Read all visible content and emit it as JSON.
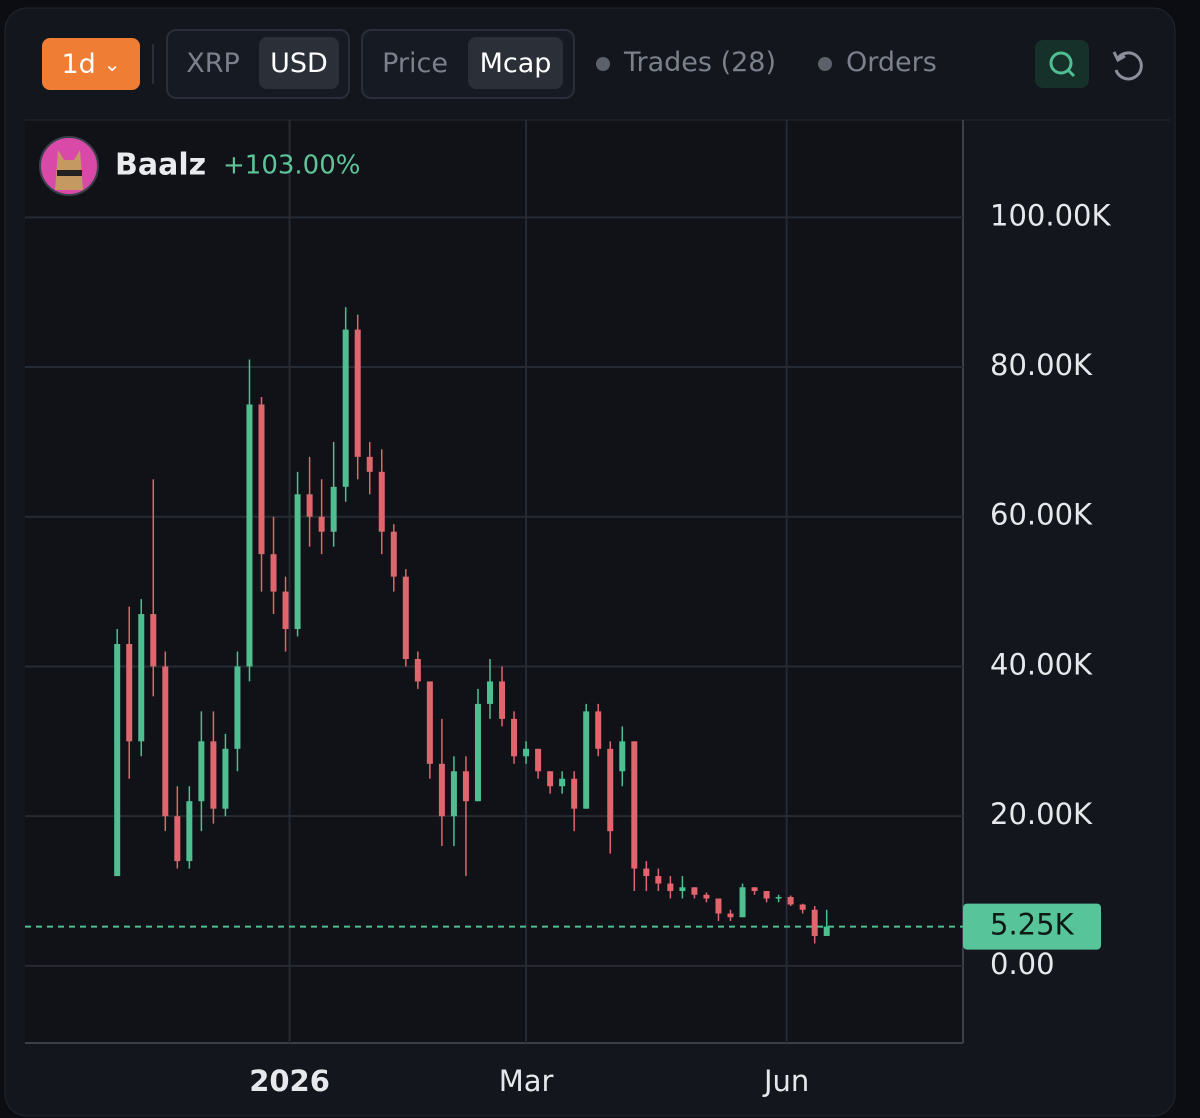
{
  "toolbar": {
    "interval": "1d",
    "currencies": [
      "XRP",
      "USD"
    ],
    "modes": [
      "Price",
      "Mcap"
    ],
    "toggles": [
      "Trades (28)",
      "Orders"
    ]
  },
  "chart_data": {
    "type": "candlestick",
    "title": "Baalz",
    "change": "+103.00%",
    "x": [
      -43,
      -40,
      -37,
      -34,
      -31,
      -28,
      -25,
      -22,
      -19,
      -16,
      -13,
      -10,
      -7,
      -4,
      -1,
      2,
      5,
      8,
      11,
      14,
      17,
      20,
      23,
      26,
      29,
      32,
      35,
      38,
      41,
      44,
      47,
      50,
      53,
      56,
      59,
      62,
      65,
      68,
      71,
      74,
      77,
      80,
      83,
      86,
      89,
      92,
      95,
      98,
      101,
      104,
      107,
      110,
      113,
      116,
      119,
      122,
      125,
      128,
      131,
      134
    ],
    "series": [
      {
        "name": "Baalz",
        "open": [
          12000,
          43000,
          30000,
          47000,
          40000,
          20000,
          14000,
          22000,
          30000,
          21000,
          29000,
          40000,
          75000,
          55000,
          50000,
          45000,
          63000,
          60000,
          58000,
          64000,
          85000,
          68000,
          66000,
          58000,
          52000,
          41000,
          38000,
          27000,
          20000,
          26000,
          22000,
          35000,
          38000,
          33000,
          28000,
          29000,
          26000,
          24000,
          25000,
          21000,
          34000,
          29000,
          26000,
          30000,
          13000,
          12000,
          11000,
          10000,
          10500,
          9500,
          9000,
          7000,
          6500,
          10500,
          10000,
          9000,
          9200,
          8200,
          7500,
          4000
        ],
        "high": [
          45000,
          48000,
          49000,
          65000,
          42000,
          24000,
          24000,
          34000,
          34000,
          31000,
          42000,
          81000,
          76000,
          60000,
          52000,
          66000,
          68000,
          65000,
          70000,
          88000,
          87000,
          70000,
          69000,
          59000,
          53000,
          42000,
          38000,
          33000,
          28000,
          28000,
          37000,
          41000,
          40000,
          34000,
          30000,
          29000,
          26000,
          26000,
          26000,
          35000,
          35000,
          30000,
          32000,
          30000,
          14000,
          13000,
          12000,
          12000,
          10500,
          9800,
          9000,
          7500,
          11000,
          10500,
          10000,
          9500,
          9400,
          8300,
          8000,
          7500
        ],
        "low": [
          12000,
          25000,
          28000,
          36000,
          18000,
          13000,
          13000,
          18000,
          19000,
          20000,
          26000,
          38000,
          50000,
          47000,
          42000,
          44000,
          56000,
          55000,
          56000,
          62000,
          65000,
          63000,
          55000,
          50000,
          40000,
          37000,
          25000,
          16000,
          16000,
          12000,
          22000,
          33000,
          32000,
          27000,
          27000,
          25000,
          23000,
          23000,
          18000,
          21000,
          28000,
          15000,
          24000,
          10000,
          10000,
          10000,
          9000,
          9000,
          9000,
          8500,
          6000,
          6000,
          6500,
          9500,
          8500,
          8500,
          8000,
          7000,
          3000,
          4000
        ],
        "close": [
          43000,
          30000,
          47000,
          40000,
          20000,
          14000,
          22000,
          30000,
          21000,
          29000,
          40000,
          75000,
          55000,
          50000,
          45000,
          63000,
          60000,
          58000,
          64000,
          85000,
          68000,
          66000,
          58000,
          52000,
          41000,
          38000,
          27000,
          20000,
          26000,
          22000,
          35000,
          38000,
          33000,
          28000,
          29000,
          26000,
          24000,
          25000,
          21000,
          34000,
          29000,
          18000,
          30000,
          13000,
          12000,
          11000,
          10000,
          10500,
          9500,
          9000,
          7000,
          6500,
          10500,
          10000,
          9000,
          9200,
          8200,
          7500,
          4000,
          5250
        ]
      }
    ],
    "up_color": "#4fbf92",
    "down_color": "#e0656d",
    "last_price": {
      "value": 5250,
      "label": "5.25K"
    },
    "xlim": [
      -66,
      168
    ],
    "xticks": [
      {
        "value": 0,
        "label": "2026"
      },
      {
        "value": 59,
        "label": "Mar"
      },
      {
        "value": 124,
        "label": "Jun"
      }
    ],
    "ylim": [
      -10300,
      113000
    ],
    "yticks": [
      {
        "value": 0,
        "label": "0.00"
      },
      {
        "value": 20000,
        "label": "20.00K"
      },
      {
        "value": 40000,
        "label": "40.00K"
      },
      {
        "value": 60000,
        "label": "60.00K"
      },
      {
        "value": 80000,
        "label": "80.00K"
      },
      {
        "value": 100000,
        "label": "100.00K"
      }
    ],
    "grid": true
  }
}
